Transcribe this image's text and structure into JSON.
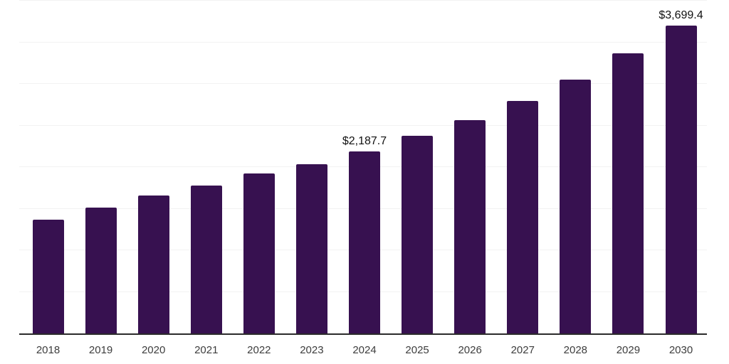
{
  "chart_data": {
    "type": "bar",
    "categories": [
      "2018",
      "2019",
      "2020",
      "2021",
      "2022",
      "2023",
      "2024",
      "2025",
      "2026",
      "2027",
      "2028",
      "2029",
      "2030"
    ],
    "values": [
      1370,
      1508,
      1653,
      1772,
      1921,
      2032,
      2187.7,
      2374,
      2565,
      2796,
      3052,
      3366,
      3699.4
    ],
    "title": "",
    "xlabel": "",
    "ylabel": "",
    "ylim": [
      0,
      4000
    ],
    "grid_step": 500,
    "grid_on": true,
    "legend": "none",
    "annotations": [
      {
        "category": "2024",
        "text": "$2,187.7"
      },
      {
        "category": "2030",
        "text": "$3,699.4"
      }
    ],
    "colors": {
      "bar": "#371150",
      "axis": "#2b2b2b",
      "grid": "#f2f2f2",
      "tick_label": "#3d3d3d",
      "value_label": "#111111",
      "background": "#ffffff"
    }
  }
}
